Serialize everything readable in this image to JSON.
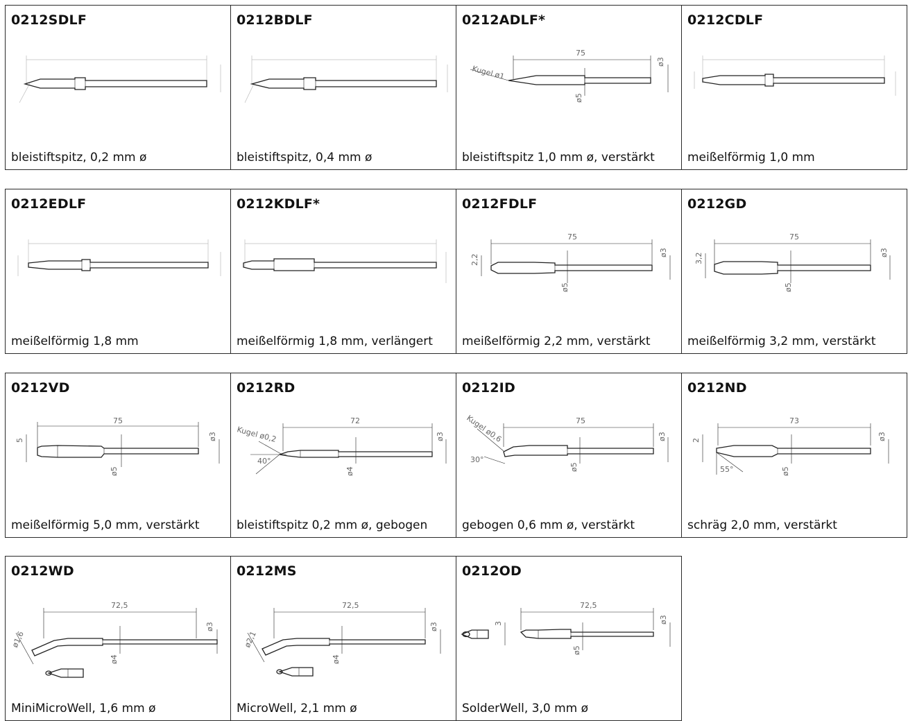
{
  "tips": [
    {
      "code": "0212SDLF",
      "description": "bleistiftspitz, 0,2 mm ø",
      "style": "faint",
      "shape": "pencil"
    },
    {
      "code": "0212BDLF",
      "description": "bleistiftspitz, 0,4 mm ø",
      "style": "faint",
      "shape": "pencil"
    },
    {
      "code": "0212ADLF*",
      "description": "bleistiftspitz 1,0 mm ø, verstärkt",
      "style": "dim",
      "shape": "angled",
      "dims": {
        "length": "75",
        "diam_right": "ø3",
        "diam_mid": "ø5",
        "tip": "Kugel ø1"
      }
    },
    {
      "code": "0212CDLF",
      "description": "meißelförmig 1,0 mm",
      "style": "faint",
      "shape": "chisel"
    },
    {
      "code": "0212EDLF",
      "description": "meißelförmig 1,8 mm",
      "style": "faint",
      "shape": "chisel"
    },
    {
      "code": "0212KDLF*",
      "description": "meißelförmig 1,8 mm, verlängert",
      "style": "faint",
      "shape": "chisel-long"
    },
    {
      "code": "0212FDLF",
      "description": "meißelförmig 2,2 mm, verstärkt",
      "style": "dim",
      "shape": "chisel",
      "dims": {
        "length": "75",
        "diam_right": "ø3",
        "diam_mid": "ø5",
        "tip": "2,2"
      }
    },
    {
      "code": "0212GD",
      "description": "meißelförmig 3,2 mm, verstärkt",
      "style": "dim",
      "shape": "chisel",
      "dims": {
        "length": "75",
        "diam_right": "ø3",
        "diam_mid": "ø5",
        "tip": "3,2"
      }
    },
    {
      "code": "0212VD",
      "description": "meißelförmig 5,0 mm, verstärkt",
      "style": "dim",
      "shape": "chisel-wide",
      "dims": {
        "length": "75",
        "diam_right": "ø3",
        "diam_mid": "ø5",
        "tip": "5"
      }
    },
    {
      "code": "0212RD",
      "description": "bleistiftspitz 0,2 mm ø, gebogen",
      "style": "dim",
      "shape": "bent",
      "dims": {
        "length": "72",
        "diam_right": "ø3",
        "diam_mid": "ø4",
        "tip": "Kugel ø0,2",
        "angle": "40°"
      }
    },
    {
      "code": "0212ID",
      "description": "gebogen 0,6 mm ø, verstärkt",
      "style": "dim",
      "shape": "bent-up",
      "dims": {
        "length": "75",
        "diam_right": "ø3",
        "diam_mid": "ø5",
        "tip": "Kugel ø0,6",
        "angle": "30°"
      }
    },
    {
      "code": "0212ND",
      "description": "schräg 2,0 mm, verstärkt",
      "style": "dim",
      "shape": "slant",
      "dims": {
        "length": "73",
        "diam_right": "ø3",
        "diam_mid": "ø5",
        "tip": "2",
        "angle": "55°"
      }
    },
    {
      "code": "0212WD",
      "description": "MiniMicroWell, 1,6 mm ø",
      "style": "dim",
      "shape": "well",
      "dims": {
        "length": "72,5",
        "diam_right": "ø3",
        "diam_mid": "ø4",
        "tip": "ø1,6"
      }
    },
    {
      "code": "0212MS",
      "description": "MicroWell, 2,1 mm ø",
      "style": "dim",
      "shape": "well",
      "dims": {
        "length": "72,5",
        "diam_right": "ø3",
        "diam_mid": "ø4",
        "tip": "ø2,1"
      }
    },
    {
      "code": "0212OD",
      "description": "SolderWell, 3,0 mm ø",
      "style": "dim",
      "shape": "solderwell",
      "dims": {
        "length": "72,5",
        "diam_right": "ø3",
        "diam_mid": "ø5",
        "tip": "3"
      }
    }
  ]
}
